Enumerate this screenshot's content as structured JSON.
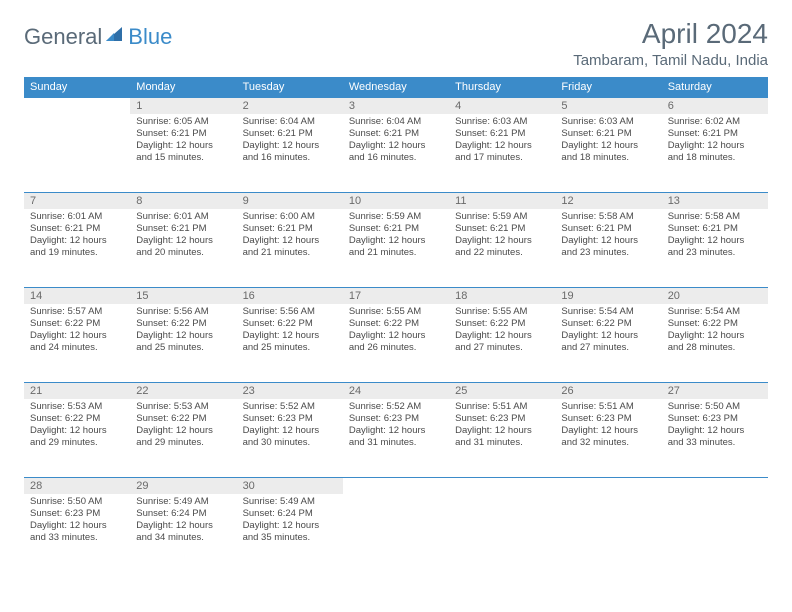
{
  "logo": {
    "text1": "General",
    "text2": "Blue",
    "text1_color": "#5a6a78",
    "text2_color": "#3b8bc9",
    "sail_color": "#2f6fa8"
  },
  "title": "April 2024",
  "location": "Tambaram, Tamil Nadu, India",
  "header_color": "#3b8bc9",
  "weekdays": [
    "Sunday",
    "Monday",
    "Tuesday",
    "Wednesday",
    "Thursday",
    "Friday",
    "Saturday"
  ],
  "days": [
    {
      "n": "1",
      "sunrise": "6:05 AM",
      "sunset": "6:21 PM",
      "dl1": "12 hours",
      "dl2": "15 minutes."
    },
    {
      "n": "2",
      "sunrise": "6:04 AM",
      "sunset": "6:21 PM",
      "dl1": "12 hours",
      "dl2": "16 minutes."
    },
    {
      "n": "3",
      "sunrise": "6:04 AM",
      "sunset": "6:21 PM",
      "dl1": "12 hours",
      "dl2": "16 minutes."
    },
    {
      "n": "4",
      "sunrise": "6:03 AM",
      "sunset": "6:21 PM",
      "dl1": "12 hours",
      "dl2": "17 minutes."
    },
    {
      "n": "5",
      "sunrise": "6:03 AM",
      "sunset": "6:21 PM",
      "dl1": "12 hours",
      "dl2": "18 minutes."
    },
    {
      "n": "6",
      "sunrise": "6:02 AM",
      "sunset": "6:21 PM",
      "dl1": "12 hours",
      "dl2": "18 minutes."
    },
    {
      "n": "7",
      "sunrise": "6:01 AM",
      "sunset": "6:21 PM",
      "dl1": "12 hours",
      "dl2": "19 minutes."
    },
    {
      "n": "8",
      "sunrise": "6:01 AM",
      "sunset": "6:21 PM",
      "dl1": "12 hours",
      "dl2": "20 minutes."
    },
    {
      "n": "9",
      "sunrise": "6:00 AM",
      "sunset": "6:21 PM",
      "dl1": "12 hours",
      "dl2": "21 minutes."
    },
    {
      "n": "10",
      "sunrise": "5:59 AM",
      "sunset": "6:21 PM",
      "dl1": "12 hours",
      "dl2": "21 minutes."
    },
    {
      "n": "11",
      "sunrise": "5:59 AM",
      "sunset": "6:21 PM",
      "dl1": "12 hours",
      "dl2": "22 minutes."
    },
    {
      "n": "12",
      "sunrise": "5:58 AM",
      "sunset": "6:21 PM",
      "dl1": "12 hours",
      "dl2": "23 minutes."
    },
    {
      "n": "13",
      "sunrise": "5:58 AM",
      "sunset": "6:21 PM",
      "dl1": "12 hours",
      "dl2": "23 minutes."
    },
    {
      "n": "14",
      "sunrise": "5:57 AM",
      "sunset": "6:22 PM",
      "dl1": "12 hours",
      "dl2": "24 minutes."
    },
    {
      "n": "15",
      "sunrise": "5:56 AM",
      "sunset": "6:22 PM",
      "dl1": "12 hours",
      "dl2": "25 minutes."
    },
    {
      "n": "16",
      "sunrise": "5:56 AM",
      "sunset": "6:22 PM",
      "dl1": "12 hours",
      "dl2": "25 minutes."
    },
    {
      "n": "17",
      "sunrise": "5:55 AM",
      "sunset": "6:22 PM",
      "dl1": "12 hours",
      "dl2": "26 minutes."
    },
    {
      "n": "18",
      "sunrise": "5:55 AM",
      "sunset": "6:22 PM",
      "dl1": "12 hours",
      "dl2": "27 minutes."
    },
    {
      "n": "19",
      "sunrise": "5:54 AM",
      "sunset": "6:22 PM",
      "dl1": "12 hours",
      "dl2": "27 minutes."
    },
    {
      "n": "20",
      "sunrise": "5:54 AM",
      "sunset": "6:22 PM",
      "dl1": "12 hours",
      "dl2": "28 minutes."
    },
    {
      "n": "21",
      "sunrise": "5:53 AM",
      "sunset": "6:22 PM",
      "dl1": "12 hours",
      "dl2": "29 minutes."
    },
    {
      "n": "22",
      "sunrise": "5:53 AM",
      "sunset": "6:22 PM",
      "dl1": "12 hours",
      "dl2": "29 minutes."
    },
    {
      "n": "23",
      "sunrise": "5:52 AM",
      "sunset": "6:23 PM",
      "dl1": "12 hours",
      "dl2": "30 minutes."
    },
    {
      "n": "24",
      "sunrise": "5:52 AM",
      "sunset": "6:23 PM",
      "dl1": "12 hours",
      "dl2": "31 minutes."
    },
    {
      "n": "25",
      "sunrise": "5:51 AM",
      "sunset": "6:23 PM",
      "dl1": "12 hours",
      "dl2": "31 minutes."
    },
    {
      "n": "26",
      "sunrise": "5:51 AM",
      "sunset": "6:23 PM",
      "dl1": "12 hours",
      "dl2": "32 minutes."
    },
    {
      "n": "27",
      "sunrise": "5:50 AM",
      "sunset": "6:23 PM",
      "dl1": "12 hours",
      "dl2": "33 minutes."
    },
    {
      "n": "28",
      "sunrise": "5:50 AM",
      "sunset": "6:23 PM",
      "dl1": "12 hours",
      "dl2": "33 minutes."
    },
    {
      "n": "29",
      "sunrise": "5:49 AM",
      "sunset": "6:24 PM",
      "dl1": "12 hours",
      "dl2": "34 minutes."
    },
    {
      "n": "30",
      "sunrise": "5:49 AM",
      "sunset": "6:24 PM",
      "dl1": "12 hours",
      "dl2": "35 minutes."
    }
  ],
  "labels": {
    "sunrise": "Sunrise:",
    "sunset": "Sunset:",
    "daylight": "Daylight:",
    "and": "and"
  },
  "start_weekday": 1,
  "fonts": {
    "title_size": 28,
    "location_size": 15,
    "dayhead_size": 11,
    "cell_size": 9.5
  }
}
